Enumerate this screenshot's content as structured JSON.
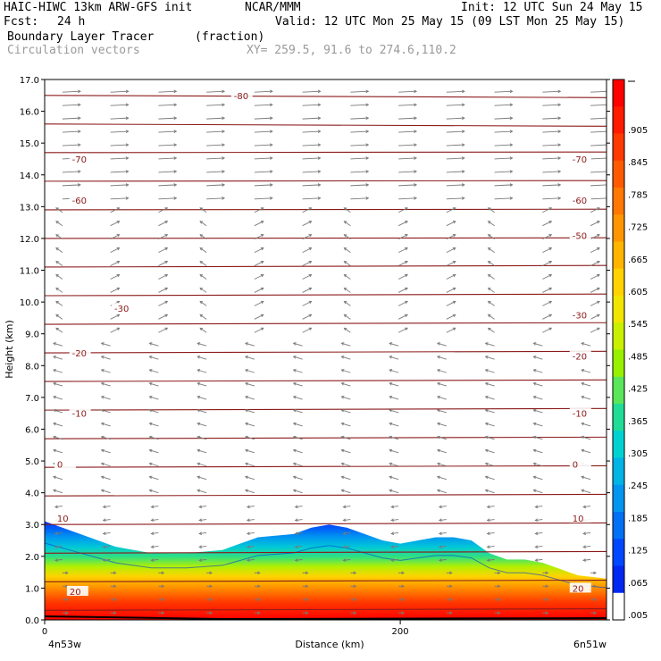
{
  "header": {
    "model": "HAIC-HIWC 13km ARW-GFS init",
    "org": "NCAR/MMM",
    "init": "Init: 12 UTC Sun 24 May 15",
    "fcst_label": "Fcst:",
    "fcst_value": "24 h",
    "valid": "Valid: 12 UTC Mon 25 May 15 (09 LST Mon 25 May 15)",
    "field": "Boundary Layer Tracer",
    "field_units": "(fraction)",
    "vectors": "Circulation vectors",
    "xy": "XY= 259.5, 91.6 to 274.6,110.2"
  },
  "chart_data": {
    "type": "heatmap",
    "ylabel": "Height (km)",
    "xlabel": "Distance (km)",
    "x_start_label": "4n53w",
    "x_end_label": "6n51w",
    "xlim": [
      0,
      316
    ],
    "ylim": [
      0,
      17
    ],
    "x_ticks": [
      "0",
      "200"
    ],
    "y_ticks": [
      "0.0",
      "1.0",
      "2.0",
      "3.0",
      "4.0",
      "5.0",
      "6.0",
      "7.0",
      "8.0",
      "9.0",
      "10.0",
      "11.0",
      "12.0",
      "13.0",
      "14.0",
      "15.0",
      "16.0",
      "17.0"
    ],
    "tracer_top_profile": {
      "x_km": [
        0,
        20,
        40,
        60,
        80,
        100,
        120,
        140,
        150,
        160,
        170,
        180,
        190,
        200,
        210,
        220,
        230,
        240,
        250,
        260,
        270,
        280,
        290,
        300,
        316
      ],
      "height_km": [
        3.1,
        2.7,
        2.3,
        2.1,
        2.1,
        2.2,
        2.6,
        2.7,
        2.9,
        3.0,
        2.9,
        2.7,
        2.5,
        2.4,
        2.5,
        2.6,
        2.6,
        2.5,
        2.1,
        1.9,
        1.9,
        1.8,
        1.6,
        1.4,
        1.3
      ]
    },
    "temperature_contour_labels": [
      "-80",
      "-70",
      "-70",
      "-60",
      "-60",
      "-50",
      "-30",
      "-30",
      "-20",
      "-20",
      "-10",
      "-10",
      "0",
      "0",
      "10",
      "10",
      "20",
      "20"
    ],
    "colorbar": {
      "labels": [
        ".905",
        ".845",
        ".785",
        ".725",
        ".665",
        ".605",
        ".545",
        ".485",
        ".425",
        ".365",
        ".305",
        ".245",
        ".185",
        ".125",
        ".065",
        ".005"
      ],
      "colors": [
        "#ff0000",
        "#ff1a00",
        "#ff3a00",
        "#ff5a00",
        "#ff7800",
        "#ff9600",
        "#ffb400",
        "#ffd200",
        "#f0e600",
        "#c8f000",
        "#96f000",
        "#5ae65a",
        "#20dc96",
        "#00d2d2",
        "#00b4e6",
        "#0096f0",
        "#0070f5",
        "#0048ff",
        "#0028f0",
        "#fff"
      ]
    }
  }
}
